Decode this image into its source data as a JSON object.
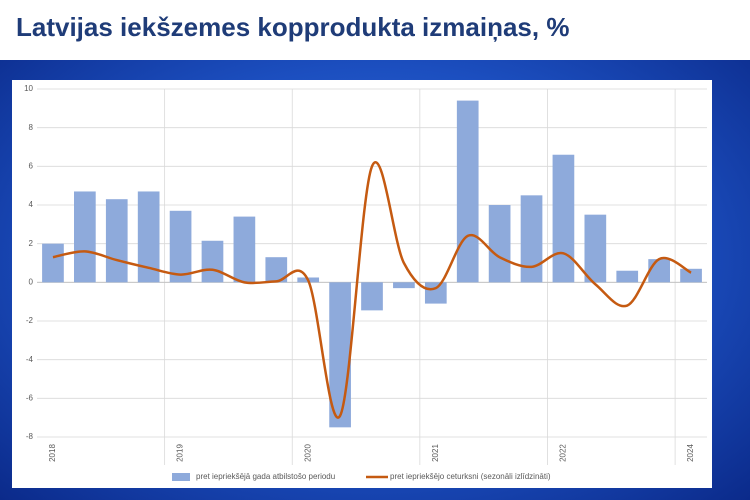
{
  "chart_data": {
    "type": "combo",
    "title": "Latvijas iekšzemes kopprodukta izmaiņas, %",
    "categories": [
      "2018",
      null,
      null,
      null,
      "2019",
      null,
      null,
      null,
      "2020",
      null,
      null,
      null,
      "2021",
      null,
      null,
      null,
      "2022",
      null,
      null,
      null,
      "2024"
    ],
    "series": [
      {
        "name": "pret iepriekšējā gada atbilstošo periodu",
        "type": "bar",
        "color": "#8eaadb",
        "values": [
          2.0,
          4.7,
          4.3,
          4.7,
          3.7,
          2.15,
          3.4,
          1.3,
          0.25,
          -7.5,
          -1.45,
          -0.3,
          -1.1,
          9.4,
          4.0,
          4.5,
          6.6,
          3.5,
          0.6,
          1.2,
          0.7
        ]
      },
      {
        "name": "pret iepriekšējo ceturksni (sezonāli izlīdzināti)",
        "type": "line",
        "color": "#c55a11",
        "values": [
          1.3,
          1.6,
          1.15,
          0.75,
          0.4,
          0.65,
          0.0,
          0.05,
          0.1,
          -6.9,
          6.0,
          1.0,
          -0.3,
          2.4,
          1.3,
          0.8,
          1.5,
          -0.1,
          -1.2,
          1.2,
          0.5
        ]
      }
    ],
    "ylim": [
      -8,
      10
    ],
    "yticks": [
      10,
      8,
      6,
      4,
      2,
      0,
      -2,
      -4,
      -6,
      -8
    ],
    "grid": true
  }
}
